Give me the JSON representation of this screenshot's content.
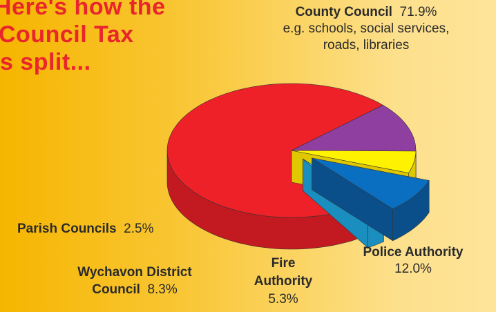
{
  "headline": {
    "line1": "Here's how the",
    "line2": "Council Tax",
    "line3": "is split..."
  },
  "chart_data": {
    "type": "pie",
    "title": "Here's how the Council Tax is split...",
    "slices": [
      {
        "label": "County Council",
        "value": 71.9,
        "value_text": "71.9%",
        "note": "e.g. schools, social services, roads, libraries",
        "color": "#ee2129",
        "side_color": "#c21a20"
      },
      {
        "label": "Police Authority",
        "value": 12.0,
        "value_text": "12.0%",
        "color": "#8e3fa0",
        "side_color": "#6d2c7d"
      },
      {
        "label": "Fire Authority",
        "value": 5.3,
        "value_text": "5.3%",
        "color": "#fff200",
        "side_color": "#e0c800"
      },
      {
        "label": "Wychavon District Council",
        "value": 8.3,
        "value_text": "8.3%",
        "color": "#0a6fc0",
        "side_color": "#0a4f8a"
      },
      {
        "label": "Parish Councils",
        "value": 2.5,
        "value_text": "2.5%",
        "color": "#2ec0ec",
        "side_color": "#1a8fbf"
      }
    ]
  },
  "labels": {
    "county": {
      "name": "County Council",
      "pct": "71.9%",
      "note1": "e.g. schools, social services,",
      "note2": "roads, libraries"
    },
    "police": {
      "name": "Police Authority",
      "pct": "12.0%"
    },
    "fire": {
      "name1": "Fire",
      "name2": "Authority",
      "pct": "5.3%"
    },
    "wychavon": {
      "name1": "Wychavon District",
      "name2": "Council",
      "pct": "8.3%"
    },
    "parish": {
      "name": "Parish Councils",
      "pct": "2.5%"
    }
  }
}
